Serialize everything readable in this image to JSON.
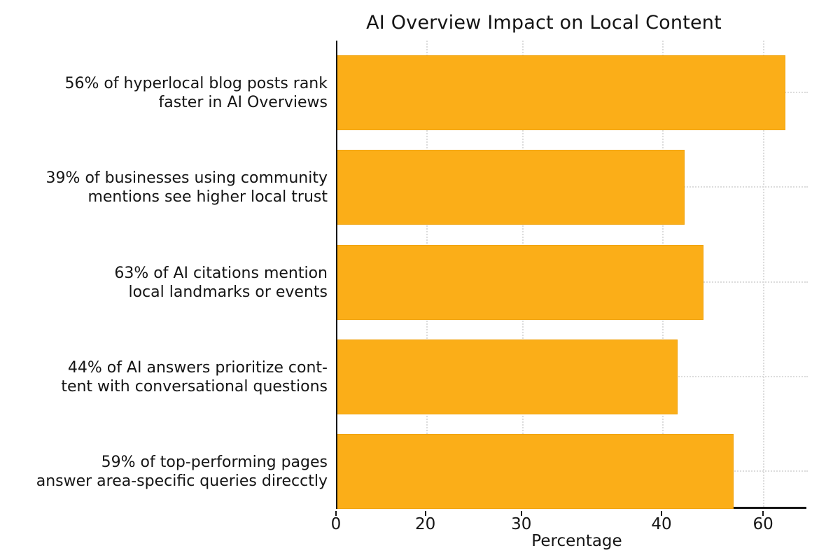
{
  "chart": {
    "title": "AI Overview Impact on Local Content",
    "xlabel": "Percentage",
    "colors": {
      "bar": "#FBAE18",
      "bar_edge": "#F0A30E",
      "axis": "#161616",
      "grid": "#dcdcdc",
      "text": "#151515",
      "background": "#ffffff"
    },
    "x_ticks": [
      {
        "label": "0",
        "pos_pct": 0
      },
      {
        "label": "20",
        "pos_pct": 19.0
      },
      {
        "label": "30",
        "pos_pct": 39.4
      },
      {
        "label": "40",
        "pos_pct": 69.2
      },
      {
        "label": "60",
        "pos_pct": 90.8
      }
    ],
    "bars": [
      {
        "label_lines": [
          "56% of hyperlocal blog posts rank",
          "faster in AI Overviews"
        ],
        "length_pct": 95.5
      },
      {
        "label_lines": [
          "39% of businesses using community",
          "mentions see higher local trust"
        ],
        "length_pct": 74.0
      },
      {
        "label_lines": [
          "63% of AI citations mention",
          "local landmarks or events"
        ],
        "length_pct": 78.0
      },
      {
        "label_lines": [
          "44% of AI answers prioritize cont-",
          "tent with conversational questions"
        ],
        "length_pct": 72.5
      },
      {
        "label_lines": [
          "59% of top-performing pages",
          "answer area-specific queries direcctly"
        ],
        "length_pct": 84.5
      }
    ]
  },
  "chart_data": {
    "type": "bar",
    "orientation": "horizontal",
    "title": "AI Overview Impact on Local Content",
    "xlabel": "Percentage",
    "ylabel": "",
    "categories": [
      "56% of hyperlocal blog posts rank faster in AI Overviews",
      "39% of businesses using community mentions see higher local trust",
      "63% of AI citations mention local landmarks or events",
      "44% of AI answers prioritize cont-tent with conversational questions",
      "59% of top-performing pages answer area-specific queries direcctly"
    ],
    "values": [
      56,
      39,
      63,
      44,
      59
    ],
    "bar_lengths_axis_units_est": [
      63,
      49,
      52,
      48,
      56
    ],
    "x_tick_labels": [
      "0",
      "20",
      "30",
      "40",
      "60"
    ],
    "x_ticks_nonuniform": true,
    "xlim_est": [
      0,
      66
    ],
    "grid": "dotted",
    "legend": "none",
    "bar_color": "#FBAE18"
  }
}
